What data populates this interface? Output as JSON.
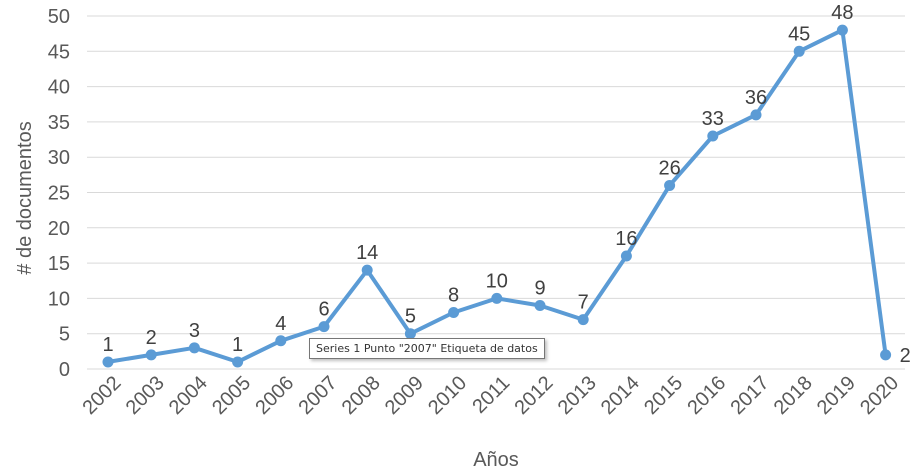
{
  "chart_data": {
    "type": "line",
    "x": [
      "2002",
      "2003",
      "2004",
      "2005",
      "2006",
      "2007",
      "2008",
      "2009",
      "2010",
      "2011",
      "2012",
      "2013",
      "2014",
      "2015",
      "2016",
      "2017",
      "2018",
      "2019",
      "2020"
    ],
    "series": [
      {
        "values": [
          1,
          2,
          3,
          1,
          4,
          6,
          14,
          5,
          8,
          10,
          9,
          7,
          16,
          26,
          33,
          36,
          45,
          48,
          2
        ]
      }
    ],
    "xlabel": "Años",
    "ylabel": "# de documentos",
    "ylim": [
      0,
      50
    ],
    "yticks": [
      0,
      5,
      10,
      15,
      20,
      25,
      30,
      35,
      40,
      45,
      50
    ],
    "grid": true,
    "line_color": "#5b9bd5",
    "grid_color": "#d9d9d9"
  },
  "tooltip": {
    "text": "Series 1 Punto \"2007\" Etiqueta de datos"
  }
}
